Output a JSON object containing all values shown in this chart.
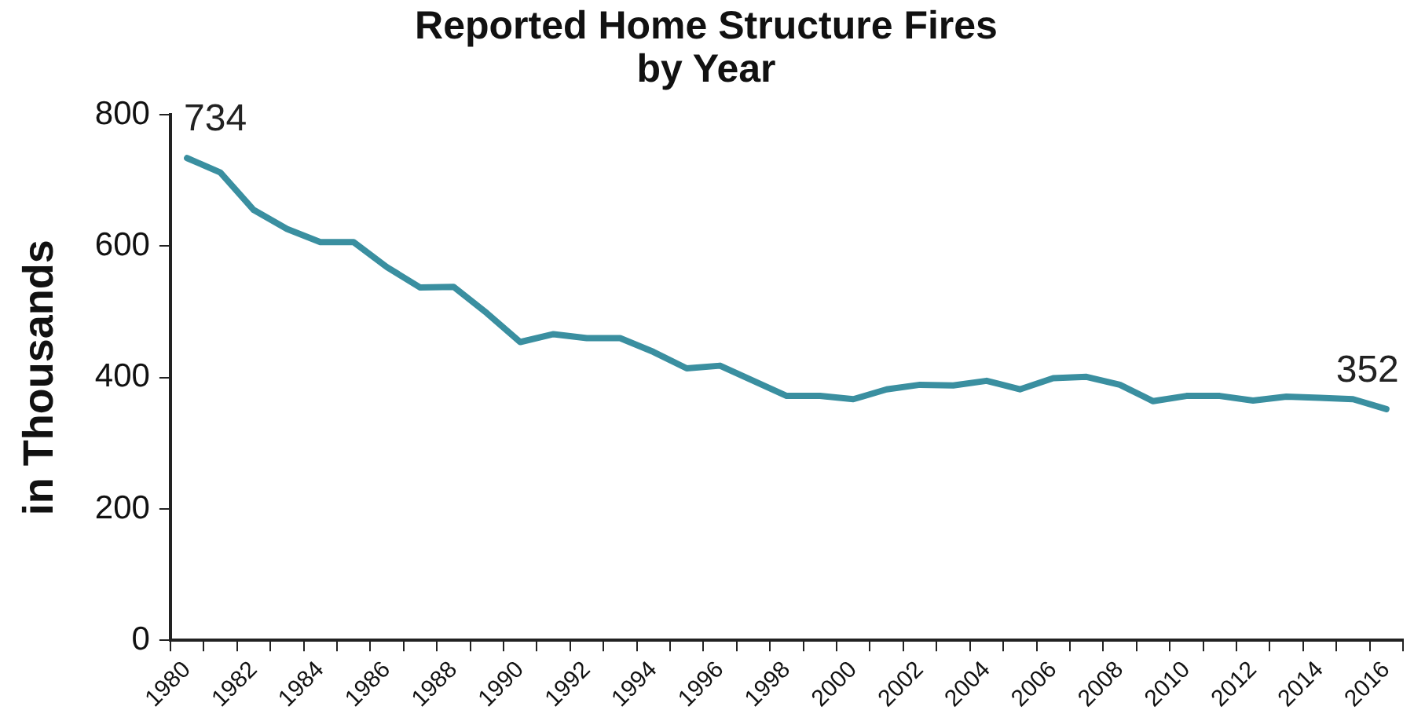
{
  "chart_data": {
    "type": "line",
    "title": "Reported Home Structure Fires\nby Year",
    "ylabel": "in Thousands",
    "categories": [
      "1980",
      null,
      "1982",
      null,
      "1984",
      null,
      "1986",
      null,
      "1988",
      null,
      "1990",
      null,
      "1992",
      null,
      "1994",
      null,
      "1996",
      null,
      "1998",
      null,
      "2000",
      null,
      "2002",
      null,
      "2004",
      null,
      "2006",
      null,
      "2008",
      null,
      "2010",
      null,
      "2012",
      null,
      "2014",
      null,
      "2016"
    ],
    "series": [
      {
        "color": "#3a8fa0",
        "values": [
          734,
          712,
          655,
          626,
          606,
          606,
          568,
          537,
          538,
          498,
          454,
          466,
          460,
          460,
          439,
          414,
          418,
          395,
          372,
          372,
          367,
          382,
          389,
          388,
          395,
          382,
          399,
          401,
          389,
          364,
          372,
          372,
          365,
          371,
          369,
          367,
          352
        ],
        "value_labels": [
          "734",
          null,
          null,
          null,
          null,
          null,
          null,
          null,
          null,
          null,
          null,
          null,
          null,
          null,
          null,
          null,
          null,
          null,
          null,
          null,
          null,
          null,
          null,
          null,
          null,
          null,
          null,
          null,
          null,
          null,
          null,
          null,
          null,
          null,
          null,
          null,
          "352"
        ]
      }
    ],
    "ylim": [
      0,
      800
    ],
    "yticks": [
      0,
      200,
      400,
      600,
      800
    ],
    "grid": false,
    "legend": false,
    "marker": "none",
    "line_style": "solid"
  }
}
